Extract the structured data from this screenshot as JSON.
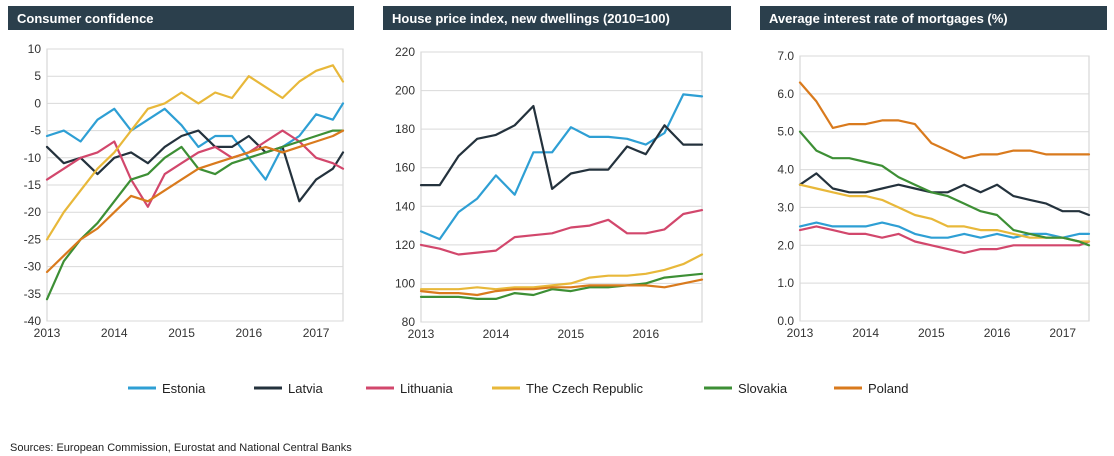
{
  "colors": {
    "title_bar": "#2b3f4c",
    "grid": "#d9d9d9",
    "Estonia": "#2e9fd4",
    "Latvia": "#24323d",
    "Lithuania": "#d2476c",
    "The Czech Republic": "#e8b83a",
    "Slovakia": "#3d8f35",
    "Poland": "#d97a1d"
  },
  "legend": [
    "Estonia",
    "Latvia",
    "Lithuania",
    "The Czech Republic",
    "Slovakia",
    "Poland"
  ],
  "source": "Sources: European Commission, Eurostat and National Central Banks",
  "chart_data": [
    {
      "type": "line",
      "title": "Consumer confidence",
      "xlabel": "",
      "ylabel": "",
      "xlim": [
        2013,
        2017.4
      ],
      "ylim": [
        -40,
        10
      ],
      "yticks": [
        10,
        5,
        0,
        -5,
        -10,
        -15,
        -20,
        -25,
        -30,
        -35,
        -40
      ],
      "ytick_labels": [
        "10",
        "5",
        "0",
        "-5",
        "-10",
        "-15",
        "-20",
        "-25",
        "-30",
        "-35",
        "-40"
      ],
      "xticks": [
        2013,
        2014,
        2015,
        2016,
        2017
      ],
      "xtick_labels": [
        "2013",
        "2014",
        "2015",
        "2016",
        "2017"
      ],
      "grid": "horizontal",
      "series": [
        {
          "name": "Estonia",
          "x": [
            2013.0,
            2013.25,
            2013.5,
            2013.75,
            2014.0,
            2014.25,
            2014.5,
            2014.75,
            2015.0,
            2015.25,
            2015.5,
            2015.75,
            2016.0,
            2016.25,
            2016.5,
            2016.75,
            2017.0,
            2017.25,
            2017.4
          ],
          "y": [
            -6,
            -5,
            -7,
            -3,
            -1,
            -5,
            -3,
            -1,
            -4,
            -8,
            -6,
            -6,
            -10,
            -14,
            -8,
            -6,
            -2,
            -3,
            0
          ]
        },
        {
          "name": "Latvia",
          "x": [
            2013.0,
            2013.25,
            2013.5,
            2013.75,
            2014.0,
            2014.25,
            2014.5,
            2014.75,
            2015.0,
            2015.25,
            2015.5,
            2015.75,
            2016.0,
            2016.25,
            2016.5,
            2016.75,
            2017.0,
            2017.25,
            2017.4
          ],
          "y": [
            -8,
            -11,
            -10,
            -13,
            -10,
            -9,
            -11,
            -8,
            -6,
            -5,
            -8,
            -8,
            -6,
            -9,
            -8,
            -18,
            -14,
            -12,
            -9
          ]
        },
        {
          "name": "Lithuania",
          "x": [
            2013.0,
            2013.25,
            2013.5,
            2013.75,
            2014.0,
            2014.25,
            2014.5,
            2014.75,
            2015.0,
            2015.25,
            2015.5,
            2015.75,
            2016.0,
            2016.25,
            2016.5,
            2016.75,
            2017.0,
            2017.25,
            2017.4
          ],
          "y": [
            -14,
            -12,
            -10,
            -9,
            -7,
            -14,
            -19,
            -13,
            -11,
            -9,
            -8,
            -10,
            -9,
            -7,
            -5,
            -7,
            -10,
            -11,
            -12
          ]
        },
        {
          "name": "The Czech Republic",
          "x": [
            2013.0,
            2013.25,
            2013.5,
            2013.75,
            2014.0,
            2014.25,
            2014.5,
            2014.75,
            2015.0,
            2015.25,
            2015.5,
            2015.75,
            2016.0,
            2016.25,
            2016.5,
            2016.75,
            2017.0,
            2017.25,
            2017.4
          ],
          "y": [
            -25,
            -20,
            -16,
            -12,
            -9,
            -5,
            -1,
            0,
            2,
            0,
            2,
            1,
            5,
            3,
            1,
            4,
            6,
            7,
            4
          ]
        },
        {
          "name": "Slovakia",
          "x": [
            2013.0,
            2013.25,
            2013.5,
            2013.75,
            2014.0,
            2014.25,
            2014.5,
            2014.75,
            2015.0,
            2015.25,
            2015.5,
            2015.75,
            2016.0,
            2016.25,
            2016.5,
            2016.75,
            2017.0,
            2017.25,
            2017.4
          ],
          "y": [
            -36,
            -29,
            -25,
            -22,
            -18,
            -14,
            -13,
            -10,
            -8,
            -12,
            -13,
            -11,
            -10,
            -9,
            -8,
            -7,
            -6,
            -5,
            -5
          ]
        },
        {
          "name": "Poland",
          "x": [
            2013.0,
            2013.25,
            2013.5,
            2013.75,
            2014.0,
            2014.25,
            2014.5,
            2014.75,
            2015.0,
            2015.25,
            2015.5,
            2015.75,
            2016.0,
            2016.25,
            2016.5,
            2016.75,
            2017.0,
            2017.25,
            2017.4
          ],
          "y": [
            -31,
            -28,
            -25,
            -23,
            -20,
            -17,
            -18,
            -16,
            -14,
            -12,
            -11,
            -10,
            -9,
            -8,
            -9,
            -8,
            -7,
            -6,
            -5
          ]
        }
      ]
    },
    {
      "type": "line",
      "title": "House price index, new dwellings (2010=100)",
      "xlabel": "",
      "ylabel": "",
      "xlim": [
        2013,
        2016.75
      ],
      "ylim": [
        80,
        220
      ],
      "yticks": [
        220,
        200,
        180,
        160,
        140,
        120,
        100,
        80
      ],
      "ytick_labels": [
        "220",
        "200",
        "180",
        "160",
        "140",
        "120",
        "100",
        "80"
      ],
      "xticks": [
        2013,
        2014,
        2015,
        2016
      ],
      "xtick_labels": [
        "2013",
        "2014",
        "2015",
        "2016"
      ],
      "grid": "horizontal",
      "series": [
        {
          "name": "Estonia",
          "x": [
            2013.0,
            2013.25,
            2013.5,
            2013.75,
            2014.0,
            2014.25,
            2014.5,
            2014.75,
            2015.0,
            2015.25,
            2015.5,
            2015.75,
            2016.0,
            2016.25,
            2016.5,
            2016.75
          ],
          "y": [
            127,
            123,
            137,
            144,
            156,
            146,
            168,
            168,
            181,
            176,
            176,
            175,
            172,
            178,
            198,
            197
          ]
        },
        {
          "name": "Latvia",
          "x": [
            2013.0,
            2013.25,
            2013.5,
            2013.75,
            2014.0,
            2014.25,
            2014.5,
            2014.75,
            2015.0,
            2015.25,
            2015.5,
            2015.75,
            2016.0,
            2016.25,
            2016.5,
            2016.75
          ],
          "y": [
            151,
            151,
            166,
            175,
            177,
            182,
            192,
            149,
            157,
            159,
            159,
            171,
            167,
            182,
            172,
            172
          ]
        },
        {
          "name": "Lithuania",
          "x": [
            2013.0,
            2013.25,
            2013.5,
            2013.75,
            2014.0,
            2014.25,
            2014.5,
            2014.75,
            2015.0,
            2015.25,
            2015.5,
            2015.75,
            2016.0,
            2016.25,
            2016.5,
            2016.75
          ],
          "y": [
            120,
            118,
            115,
            116,
            117,
            124,
            125,
            126,
            129,
            130,
            133,
            126,
            126,
            128,
            136,
            138
          ]
        },
        {
          "name": "The Czech Republic",
          "x": [
            2013.0,
            2013.25,
            2013.5,
            2013.75,
            2014.0,
            2014.25,
            2014.5,
            2014.75,
            2015.0,
            2015.25,
            2015.5,
            2015.75,
            2016.0,
            2016.25,
            2016.5,
            2016.75
          ],
          "y": [
            97,
            97,
            97,
            98,
            97,
            98,
            98,
            99,
            100,
            103,
            104,
            104,
            105,
            107,
            110,
            115
          ]
        },
        {
          "name": "Slovakia",
          "x": [
            2013.0,
            2013.25,
            2013.5,
            2013.75,
            2014.0,
            2014.25,
            2014.5,
            2014.75,
            2015.0,
            2015.25,
            2015.5,
            2015.75,
            2016.0,
            2016.25,
            2016.5,
            2016.75
          ],
          "y": [
            93,
            93,
            93,
            92,
            92,
            95,
            94,
            97,
            96,
            98,
            98,
            99,
            100,
            103,
            104,
            105
          ]
        },
        {
          "name": "Poland",
          "x": [
            2013.0,
            2013.25,
            2013.5,
            2013.75,
            2014.0,
            2014.25,
            2014.5,
            2014.75,
            2015.0,
            2015.25,
            2015.5,
            2015.75,
            2016.0,
            2016.25,
            2016.5,
            2016.75
          ],
          "y": [
            96,
            95,
            95,
            94,
            96,
            97,
            97,
            98,
            98,
            99,
            99,
            99,
            99,
            98,
            100,
            102
          ]
        }
      ]
    },
    {
      "type": "line",
      "title": "Average interest rate of mortgages (%)",
      "xlabel": "",
      "ylabel": "",
      "xlim": [
        2013,
        2017.4
      ],
      "ylim": [
        0,
        7
      ],
      "yticks": [
        7,
        6,
        5,
        4,
        3,
        2,
        1,
        0
      ],
      "ytick_labels": [
        "7.0",
        "6.0",
        "5.0",
        "4.0",
        "3.0",
        "2.0",
        "1.0",
        "0.0"
      ],
      "xticks": [
        2013,
        2014,
        2015,
        2016,
        2017
      ],
      "xtick_labels": [
        "2013",
        "2014",
        "2015",
        "2016",
        "2017"
      ],
      "grid": "horizontal",
      "series": [
        {
          "name": "Estonia",
          "x": [
            2013.0,
            2013.25,
            2013.5,
            2013.75,
            2014.0,
            2014.25,
            2014.5,
            2014.75,
            2015.0,
            2015.25,
            2015.5,
            2015.75,
            2016.0,
            2016.25,
            2016.5,
            2016.75,
            2017.0,
            2017.25,
            2017.4
          ],
          "y": [
            2.5,
            2.6,
            2.5,
            2.5,
            2.5,
            2.6,
            2.5,
            2.3,
            2.2,
            2.2,
            2.3,
            2.2,
            2.3,
            2.2,
            2.3,
            2.3,
            2.2,
            2.3,
            2.3
          ]
        },
        {
          "name": "Latvia",
          "x": [
            2013.0,
            2013.25,
            2013.5,
            2013.75,
            2014.0,
            2014.25,
            2014.5,
            2014.75,
            2015.0,
            2015.25,
            2015.5,
            2015.75,
            2016.0,
            2016.25,
            2016.5,
            2016.75,
            2017.0,
            2017.25,
            2017.4
          ],
          "y": [
            3.6,
            3.9,
            3.5,
            3.4,
            3.4,
            3.5,
            3.6,
            3.5,
            3.4,
            3.4,
            3.6,
            3.4,
            3.6,
            3.3,
            3.2,
            3.1,
            2.9,
            2.9,
            2.8
          ]
        },
        {
          "name": "Lithuania",
          "x": [
            2013.0,
            2013.25,
            2013.5,
            2013.75,
            2014.0,
            2014.25,
            2014.5,
            2014.75,
            2015.0,
            2015.25,
            2015.5,
            2015.75,
            2016.0,
            2016.25,
            2016.5,
            2016.75,
            2017.0,
            2017.25,
            2017.4
          ],
          "y": [
            2.4,
            2.5,
            2.4,
            2.3,
            2.3,
            2.2,
            2.3,
            2.1,
            2.0,
            1.9,
            1.8,
            1.9,
            1.9,
            2.0,
            2.0,
            2.0,
            2.0,
            2.0,
            2.1
          ]
        },
        {
          "name": "The Czech Republic",
          "x": [
            2013.0,
            2013.25,
            2013.5,
            2013.75,
            2014.0,
            2014.25,
            2014.5,
            2014.75,
            2015.0,
            2015.25,
            2015.5,
            2015.75,
            2016.0,
            2016.25,
            2016.5,
            2016.75,
            2017.0,
            2017.25,
            2017.4
          ],
          "y": [
            3.6,
            3.5,
            3.4,
            3.3,
            3.3,
            3.2,
            3.0,
            2.8,
            2.7,
            2.5,
            2.5,
            2.4,
            2.4,
            2.3,
            2.2,
            2.2,
            2.2,
            2.1,
            2.1
          ]
        },
        {
          "name": "Slovakia",
          "x": [
            2013.0,
            2013.25,
            2013.5,
            2013.75,
            2014.0,
            2014.25,
            2014.5,
            2014.75,
            2015.0,
            2015.25,
            2015.5,
            2015.75,
            2016.0,
            2016.25,
            2016.5,
            2016.75,
            2017.0,
            2017.25,
            2017.4
          ],
          "y": [
            5.0,
            4.5,
            4.3,
            4.3,
            4.2,
            4.1,
            3.8,
            3.6,
            3.4,
            3.3,
            3.1,
            2.9,
            2.8,
            2.4,
            2.3,
            2.2,
            2.2,
            2.1,
            2.0
          ]
        },
        {
          "name": "Poland",
          "x": [
            2013.0,
            2013.25,
            2013.5,
            2013.75,
            2014.0,
            2014.25,
            2014.5,
            2014.75,
            2015.0,
            2015.25,
            2015.5,
            2015.75,
            2016.0,
            2016.25,
            2016.5,
            2016.75,
            2017.0,
            2017.25,
            2017.4
          ],
          "y": [
            6.3,
            5.8,
            5.1,
            5.2,
            5.2,
            5.3,
            5.3,
            5.2,
            4.7,
            4.5,
            4.3,
            4.4,
            4.4,
            4.5,
            4.5,
            4.4,
            4.4,
            4.4,
            4.4
          ]
        }
      ]
    }
  ]
}
